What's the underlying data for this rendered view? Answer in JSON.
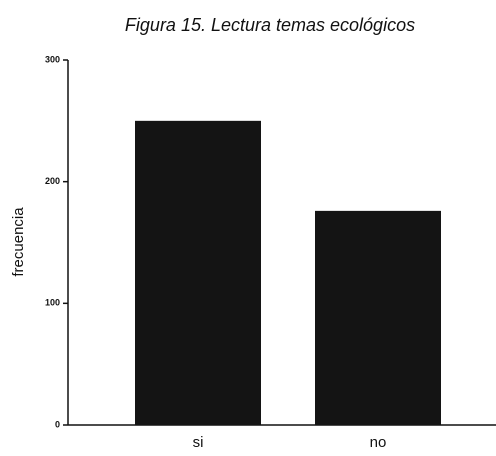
{
  "chart_data": {
    "type": "bar",
    "title": "Figura 15. Lectura temas ecológicos",
    "y_label": "frecuencia",
    "categories": [
      "si",
      "no"
    ],
    "values": [
      250,
      176
    ],
    "color": "#141414",
    "ylim": [
      0,
      300
    ],
    "yticks": [
      0,
      100,
      200,
      300
    ],
    "grid": false
  }
}
